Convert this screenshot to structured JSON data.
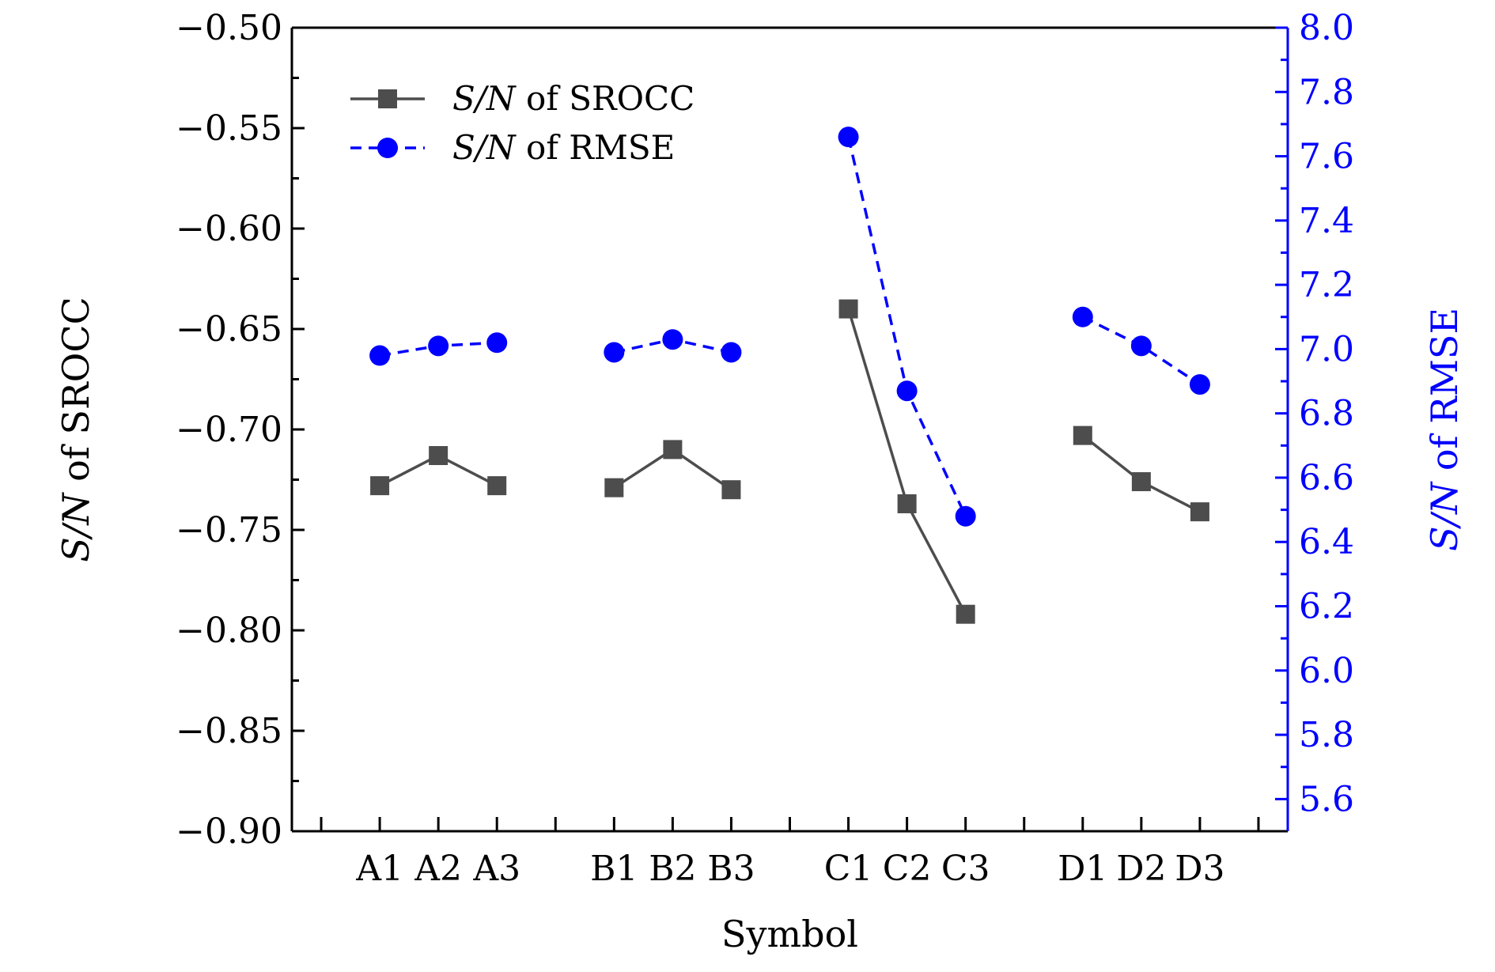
{
  "chart_data": {
    "type": "line",
    "categories": [
      "A1",
      "A2",
      "A3",
      "B1",
      "B2",
      "B3",
      "C1",
      "C2",
      "C3",
      "D1",
      "D2",
      "D3"
    ],
    "groups": [
      [
        "A1",
        "A2",
        "A3"
      ],
      [
        "B1",
        "B2",
        "B3"
      ],
      [
        "C1",
        "C2",
        "C3"
      ],
      [
        "D1",
        "D2",
        "D3"
      ]
    ],
    "xlabel": "Symbol",
    "ylabel_left": {
      "ital": "S/N",
      "rest": " of SROCC"
    },
    "ylabel_right": {
      "ital": "S/N",
      "rest": " of RMSE"
    },
    "ylim_left": [
      -0.9,
      -0.5
    ],
    "ylim_right": [
      5.5,
      8.0
    ],
    "yticks_left": [
      "−0.50",
      "−0.55",
      "−0.60",
      "−0.65",
      "−0.70",
      "−0.75",
      "−0.80",
      "−0.85",
      "−0.90"
    ],
    "yticks_left_values": [
      -0.5,
      -0.55,
      -0.6,
      -0.65,
      -0.7,
      -0.75,
      -0.8,
      -0.85,
      -0.9
    ],
    "yticks_right": [
      "8.0",
      "7.8",
      "7.6",
      "7.4",
      "7.2",
      "7.0",
      "6.8",
      "6.6",
      "6.4",
      "6.2",
      "6.0",
      "5.8",
      "5.6"
    ],
    "yticks_right_values": [
      8.0,
      7.8,
      7.6,
      7.4,
      7.2,
      7.0,
      6.8,
      6.6,
      6.4,
      6.2,
      6.0,
      5.8,
      5.6
    ],
    "series": [
      {
        "name": "S/N of SROCC",
        "legend_ital": "S/N",
        "legend_rest": " of SROCC",
        "axis": "left",
        "color": "#4d4d4d",
        "marker": "square",
        "linestyle": "solid",
        "values": [
          -0.728,
          -0.713,
          -0.728,
          -0.729,
          -0.71,
          -0.73,
          -0.64,
          -0.737,
          -0.792,
          -0.703,
          -0.726,
          -0.741
        ]
      },
      {
        "name": "S/N of RMSE",
        "legend_ital": "S/N",
        "legend_rest": " of RMSE",
        "axis": "right",
        "color": "#0000ff",
        "marker": "circle",
        "linestyle": "dashed",
        "values": [
          6.98,
          7.01,
          7.02,
          6.99,
          7.03,
          6.99,
          7.66,
          6.87,
          6.48,
          7.1,
          7.01,
          6.89
        ]
      }
    ],
    "legend_position": "top-left",
    "grid": false
  }
}
